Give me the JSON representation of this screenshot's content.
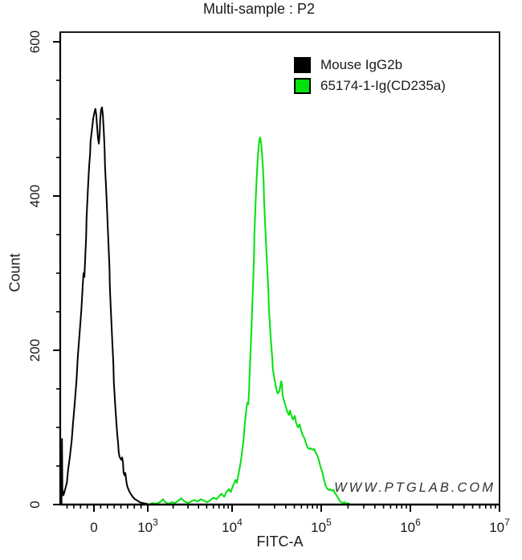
{
  "title": "Multi-sample : P2",
  "watermark": "WWW.PTGLAB.COM",
  "legend": {
    "items": [
      {
        "label": "Mouse IgG2b",
        "color": "#000000"
      },
      {
        "label": "65174-1-Ig(CD235a)",
        "color": "#00e10c"
      }
    ]
  },
  "chart_data": {
    "type": "line",
    "subtype": "flow-cytometry-histogram-overlay",
    "title": "Multi-sample : P2",
    "xlabel": "FITC-A",
    "ylabel": "Count",
    "grid": false,
    "legend_position": "top-right-inside",
    "ylim": [
      0,
      600
    ],
    "y_major_ticks": [
      0,
      200,
      400,
      600
    ],
    "y_minor_step": 50,
    "x_scale": "biexponential (linear around 0, log above 10^3); fx = fraction of axis width",
    "x_ticks": [
      {
        "label": "0",
        "fx": 0.0768
      },
      {
        "base": "10",
        "exp": "3",
        "fx": 0.1993
      },
      {
        "base": "10",
        "exp": "4",
        "fx": 0.3912
      },
      {
        "base": "10",
        "exp": "5",
        "fx": 0.5941
      },
      {
        "base": "10",
        "exp": "6",
        "fx": 0.7971
      },
      {
        "base": "10",
        "exp": "7",
        "fx": 1.0
      }
    ],
    "summary": {
      "black_peak": {
        "fitc_approx": "near 0 (0 - 10^2)",
        "peak_count": 515
      },
      "green_peak": {
        "fitc_approx": "2e4",
        "peak_count": 476
      },
      "green_tail_reaches_zero_near": "2e5"
    },
    "series": [
      {
        "name": "Mouse IgG2b",
        "color": "#000000",
        "points": [
          [
            0.0,
            0
          ],
          [
            0.003,
            0
          ],
          [
            0.004,
            85
          ],
          [
            0.005,
            20
          ],
          [
            0.007,
            12
          ],
          [
            0.009,
            15
          ],
          [
            0.015,
            28
          ],
          [
            0.018,
            45
          ],
          [
            0.022,
            62
          ],
          [
            0.026,
            82
          ],
          [
            0.029,
            105
          ],
          [
            0.033,
            132
          ],
          [
            0.037,
            160
          ],
          [
            0.04,
            192
          ],
          [
            0.044,
            222
          ],
          [
            0.048,
            252
          ],
          [
            0.051,
            282
          ],
          [
            0.053,
            300
          ],
          [
            0.055,
            295
          ],
          [
            0.057,
            322
          ],
          [
            0.059,
            348
          ],
          [
            0.06,
            372
          ],
          [
            0.062,
            396
          ],
          [
            0.064,
            420
          ],
          [
            0.066,
            440
          ],
          [
            0.068,
            455
          ],
          [
            0.069,
            470
          ],
          [
            0.071,
            480
          ],
          [
            0.073,
            490
          ],
          [
            0.075,
            500
          ],
          [
            0.077,
            506
          ],
          [
            0.079,
            511
          ],
          [
            0.08,
            513
          ],
          [
            0.082,
            505
          ],
          [
            0.084,
            490
          ],
          [
            0.086,
            475
          ],
          [
            0.088,
            468
          ],
          [
            0.09,
            482
          ],
          [
            0.091,
            500
          ],
          [
            0.093,
            512
          ],
          [
            0.095,
            515
          ],
          [
            0.097,
            505
          ],
          [
            0.099,
            485
          ],
          [
            0.101,
            462
          ],
          [
            0.102,
            438
          ],
          [
            0.104,
            415
          ],
          [
            0.106,
            390
          ],
          [
            0.108,
            362
          ],
          [
            0.11,
            335
          ],
          [
            0.112,
            308
          ],
          [
            0.113,
            282
          ],
          [
            0.115,
            255
          ],
          [
            0.117,
            230
          ],
          [
            0.119,
            205
          ],
          [
            0.121,
            182
          ],
          [
            0.122,
            160
          ],
          [
            0.124,
            140
          ],
          [
            0.126,
            122
          ],
          [
            0.128,
            105
          ],
          [
            0.13,
            90
          ],
          [
            0.132,
            78
          ],
          [
            0.133,
            68
          ],
          [
            0.135,
            62
          ],
          [
            0.137,
            60
          ],
          [
            0.139,
            58
          ],
          [
            0.141,
            61
          ],
          [
            0.143,
            54
          ],
          [
            0.144,
            42
          ],
          [
            0.146,
            38
          ],
          [
            0.148,
            41
          ],
          [
            0.15,
            32
          ],
          [
            0.152,
            25
          ],
          [
            0.155,
            20
          ],
          [
            0.159,
            15
          ],
          [
            0.165,
            10
          ],
          [
            0.17,
            7
          ],
          [
            0.176,
            5
          ],
          [
            0.181,
            3
          ],
          [
            0.188,
            2
          ],
          [
            0.196,
            1
          ],
          [
            0.201,
            0
          ]
        ]
      },
      {
        "name": "65174-1-Ig(CD235a)",
        "color": "#00e10c",
        "points": [
          [
            0.201,
            0
          ],
          [
            0.21,
            2
          ],
          [
            0.219,
            1
          ],
          [
            0.229,
            4
          ],
          [
            0.234,
            7
          ],
          [
            0.239,
            3
          ],
          [
            0.247,
            1
          ],
          [
            0.254,
            3
          ],
          [
            0.261,
            2
          ],
          [
            0.269,
            5
          ],
          [
            0.276,
            8
          ],
          [
            0.283,
            4
          ],
          [
            0.291,
            2
          ],
          [
            0.298,
            4
          ],
          [
            0.305,
            6
          ],
          [
            0.313,
            4
          ],
          [
            0.32,
            7
          ],
          [
            0.327,
            5
          ],
          [
            0.335,
            3
          ],
          [
            0.342,
            6
          ],
          [
            0.349,
            9
          ],
          [
            0.356,
            7
          ],
          [
            0.362,
            11
          ],
          [
            0.367,
            14
          ],
          [
            0.373,
            10
          ],
          [
            0.378,
            16
          ],
          [
            0.384,
            20
          ],
          [
            0.388,
            16
          ],
          [
            0.393,
            24
          ],
          [
            0.399,
            32
          ],
          [
            0.402,
            28
          ],
          [
            0.406,
            40
          ],
          [
            0.41,
            52
          ],
          [
            0.413,
            64
          ],
          [
            0.417,
            82
          ],
          [
            0.42,
            103
          ],
          [
            0.424,
            125
          ],
          [
            0.426,
            132
          ],
          [
            0.428,
            130
          ],
          [
            0.43,
            148
          ],
          [
            0.431,
            170
          ],
          [
            0.433,
            195
          ],
          [
            0.435,
            222
          ],
          [
            0.437,
            252
          ],
          [
            0.439,
            285
          ],
          [
            0.441,
            318
          ],
          [
            0.442,
            350
          ],
          [
            0.444,
            382
          ],
          [
            0.446,
            410
          ],
          [
            0.448,
            433
          ],
          [
            0.45,
            452
          ],
          [
            0.452,
            465
          ],
          [
            0.453,
            472
          ],
          [
            0.455,
            476
          ],
          [
            0.457,
            470
          ],
          [
            0.459,
            458
          ],
          [
            0.461,
            440
          ],
          [
            0.463,
            418
          ],
          [
            0.464,
            395
          ],
          [
            0.466,
            370
          ],
          [
            0.468,
            345
          ],
          [
            0.47,
            320
          ],
          [
            0.472,
            298
          ],
          [
            0.474,
            276
          ],
          [
            0.475,
            255
          ],
          [
            0.477,
            236
          ],
          [
            0.479,
            218
          ],
          [
            0.481,
            202
          ],
          [
            0.483,
            188
          ],
          [
            0.484,
            176
          ],
          [
            0.488,
            162
          ],
          [
            0.492,
            150
          ],
          [
            0.495,
            144
          ],
          [
            0.499,
            147
          ],
          [
            0.503,
            160
          ],
          [
            0.505,
            155
          ],
          [
            0.506,
            142
          ],
          [
            0.51,
            133
          ],
          [
            0.514,
            126
          ],
          [
            0.517,
            120
          ],
          [
            0.521,
            116
          ],
          [
            0.523,
            122
          ],
          [
            0.527,
            114
          ],
          [
            0.53,
            110
          ],
          [
            0.534,
            115
          ],
          [
            0.537,
            106
          ],
          [
            0.541,
            100
          ],
          [
            0.545,
            104
          ],
          [
            0.549,
            95
          ],
          [
            0.552,
            90
          ],
          [
            0.556,
            86
          ],
          [
            0.559,
            80
          ],
          [
            0.563,
            74
          ],
          [
            0.567,
            72
          ],
          [
            0.57,
            73
          ],
          [
            0.574,
            71
          ],
          [
            0.578,
            72
          ],
          [
            0.581,
            68
          ],
          [
            0.585,
            64
          ],
          [
            0.589,
            57
          ],
          [
            0.592,
            50
          ],
          [
            0.596,
            43
          ],
          [
            0.6,
            34
          ],
          [
            0.603,
            27
          ],
          [
            0.607,
            21
          ],
          [
            0.611,
            19
          ],
          [
            0.614,
            20
          ],
          [
            0.618,
            18
          ],
          [
            0.622,
            19
          ],
          [
            0.625,
            15
          ],
          [
            0.629,
            12
          ],
          [
            0.633,
            8
          ],
          [
            0.636,
            5
          ],
          [
            0.64,
            3
          ],
          [
            0.644,
            2
          ],
          [
            0.647,
            3
          ],
          [
            0.651,
            1
          ],
          [
            0.654,
            2
          ],
          [
            0.658,
            1
          ],
          [
            0.662,
            0
          ],
          [
            0.675,
            0
          ]
        ]
      }
    ]
  }
}
